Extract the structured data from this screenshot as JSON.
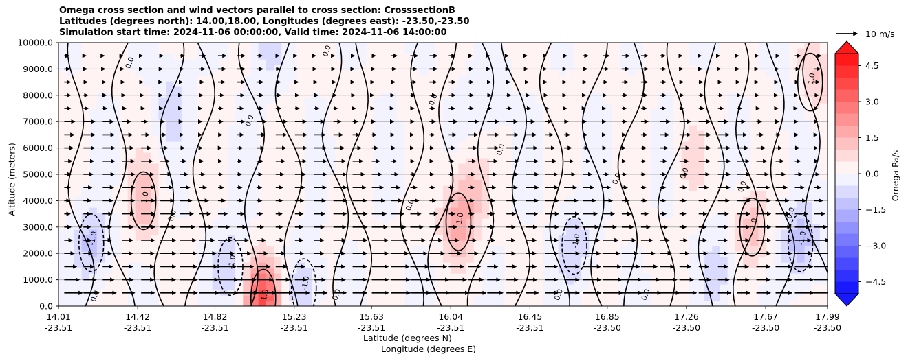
{
  "chart_data": {
    "type": "heatmap",
    "title_lines": [
      "Omega cross section and wind vectors parallel to cross section: CrosssectionB",
      "Latitudes (degrees north): 14.00,18.00, Longitudes (degrees east): -23.50,-23.50",
      "Simulation start time: 2024-11-06 00:00:00, Valid time: 2024-11-06 14:00:00"
    ],
    "xlabel_lines": [
      "Latitude (degrees N)",
      "Longitude (degrees E)"
    ],
    "ylabel": "Altitude (meters)",
    "x_ticks": [
      {
        "lat": "14.01",
        "lon": "-23.51"
      },
      {
        "lat": "14.42",
        "lon": "-23.51"
      },
      {
        "lat": "14.82",
        "lon": "-23.51"
      },
      {
        "lat": "15.23",
        "lon": "-23.51"
      },
      {
        "lat": "15.63",
        "lon": "-23.51"
      },
      {
        "lat": "16.04",
        "lon": "-23.51"
      },
      {
        "lat": "16.45",
        "lon": "-23.51"
      },
      {
        "lat": "16.85",
        "lon": "-23.50"
      },
      {
        "lat": "17.26",
        "lon": "-23.50"
      },
      {
        "lat": "17.67",
        "lon": "-23.50"
      },
      {
        "lat": "17.99",
        "lon": "-23.50"
      }
    ],
    "y_ticks": [
      "10000.0",
      "9000.0",
      "8000.0",
      "7000.0",
      "6000.0",
      "5000.0",
      "4000.0",
      "3000.0",
      "2000.0",
      "1000.0",
      "0.0"
    ],
    "ylim": [
      0,
      10000
    ],
    "xlim": [
      14.01,
      17.99
    ],
    "grid": true,
    "colorbar": {
      "label": "Omega Pa/s",
      "ticks": [
        "4.5",
        "3.0",
        "1.5",
        "0.0",
        "−1.5",
        "−3.0",
        "−4.5"
      ],
      "range": [
        -5.0,
        5.0
      ],
      "levels": 20
    },
    "quiver_key": "10 m/s",
    "contour_labels": [
      "0.0",
      "1.0",
      "-1.0"
    ],
    "anomalies": [
      {
        "lat": 14.45,
        "alt": 4000,
        "value": 1.3
      },
      {
        "lat": 14.18,
        "alt": 2400,
        "value": -1.2
      },
      {
        "lat": 14.9,
        "alt": 1500,
        "value": -1.0
      },
      {
        "lat": 15.07,
        "alt": 300,
        "value": 3.6
      },
      {
        "lat": 15.28,
        "alt": 700,
        "value": -1.0
      },
      {
        "lat": 16.08,
        "alt": 3200,
        "value": 1.7
      },
      {
        "lat": 16.15,
        "alt": 4600,
        "value": 0.8
      },
      {
        "lat": 16.68,
        "alt": 2300,
        "value": -1.0
      },
      {
        "lat": 17.42,
        "alt": 1400,
        "value": -0.8
      },
      {
        "lat": 17.6,
        "alt": 3000,
        "value": 1.2
      },
      {
        "lat": 17.85,
        "alt": 2400,
        "value": -1.4
      },
      {
        "lat": 17.9,
        "alt": 8500,
        "value": 1.4
      },
      {
        "lat": 14.6,
        "alt": 7600,
        "value": -0.8
      },
      {
        "lat": 15.1,
        "alt": 9700,
        "value": -0.7
      },
      {
        "lat": 17.85,
        "alt": 8000,
        "value": -0.8
      },
      {
        "lat": 16.22,
        "alt": 7800,
        "value": -0.6
      },
      {
        "lat": 17.28,
        "alt": 5600,
        "value": 0.6
      }
    ]
  }
}
